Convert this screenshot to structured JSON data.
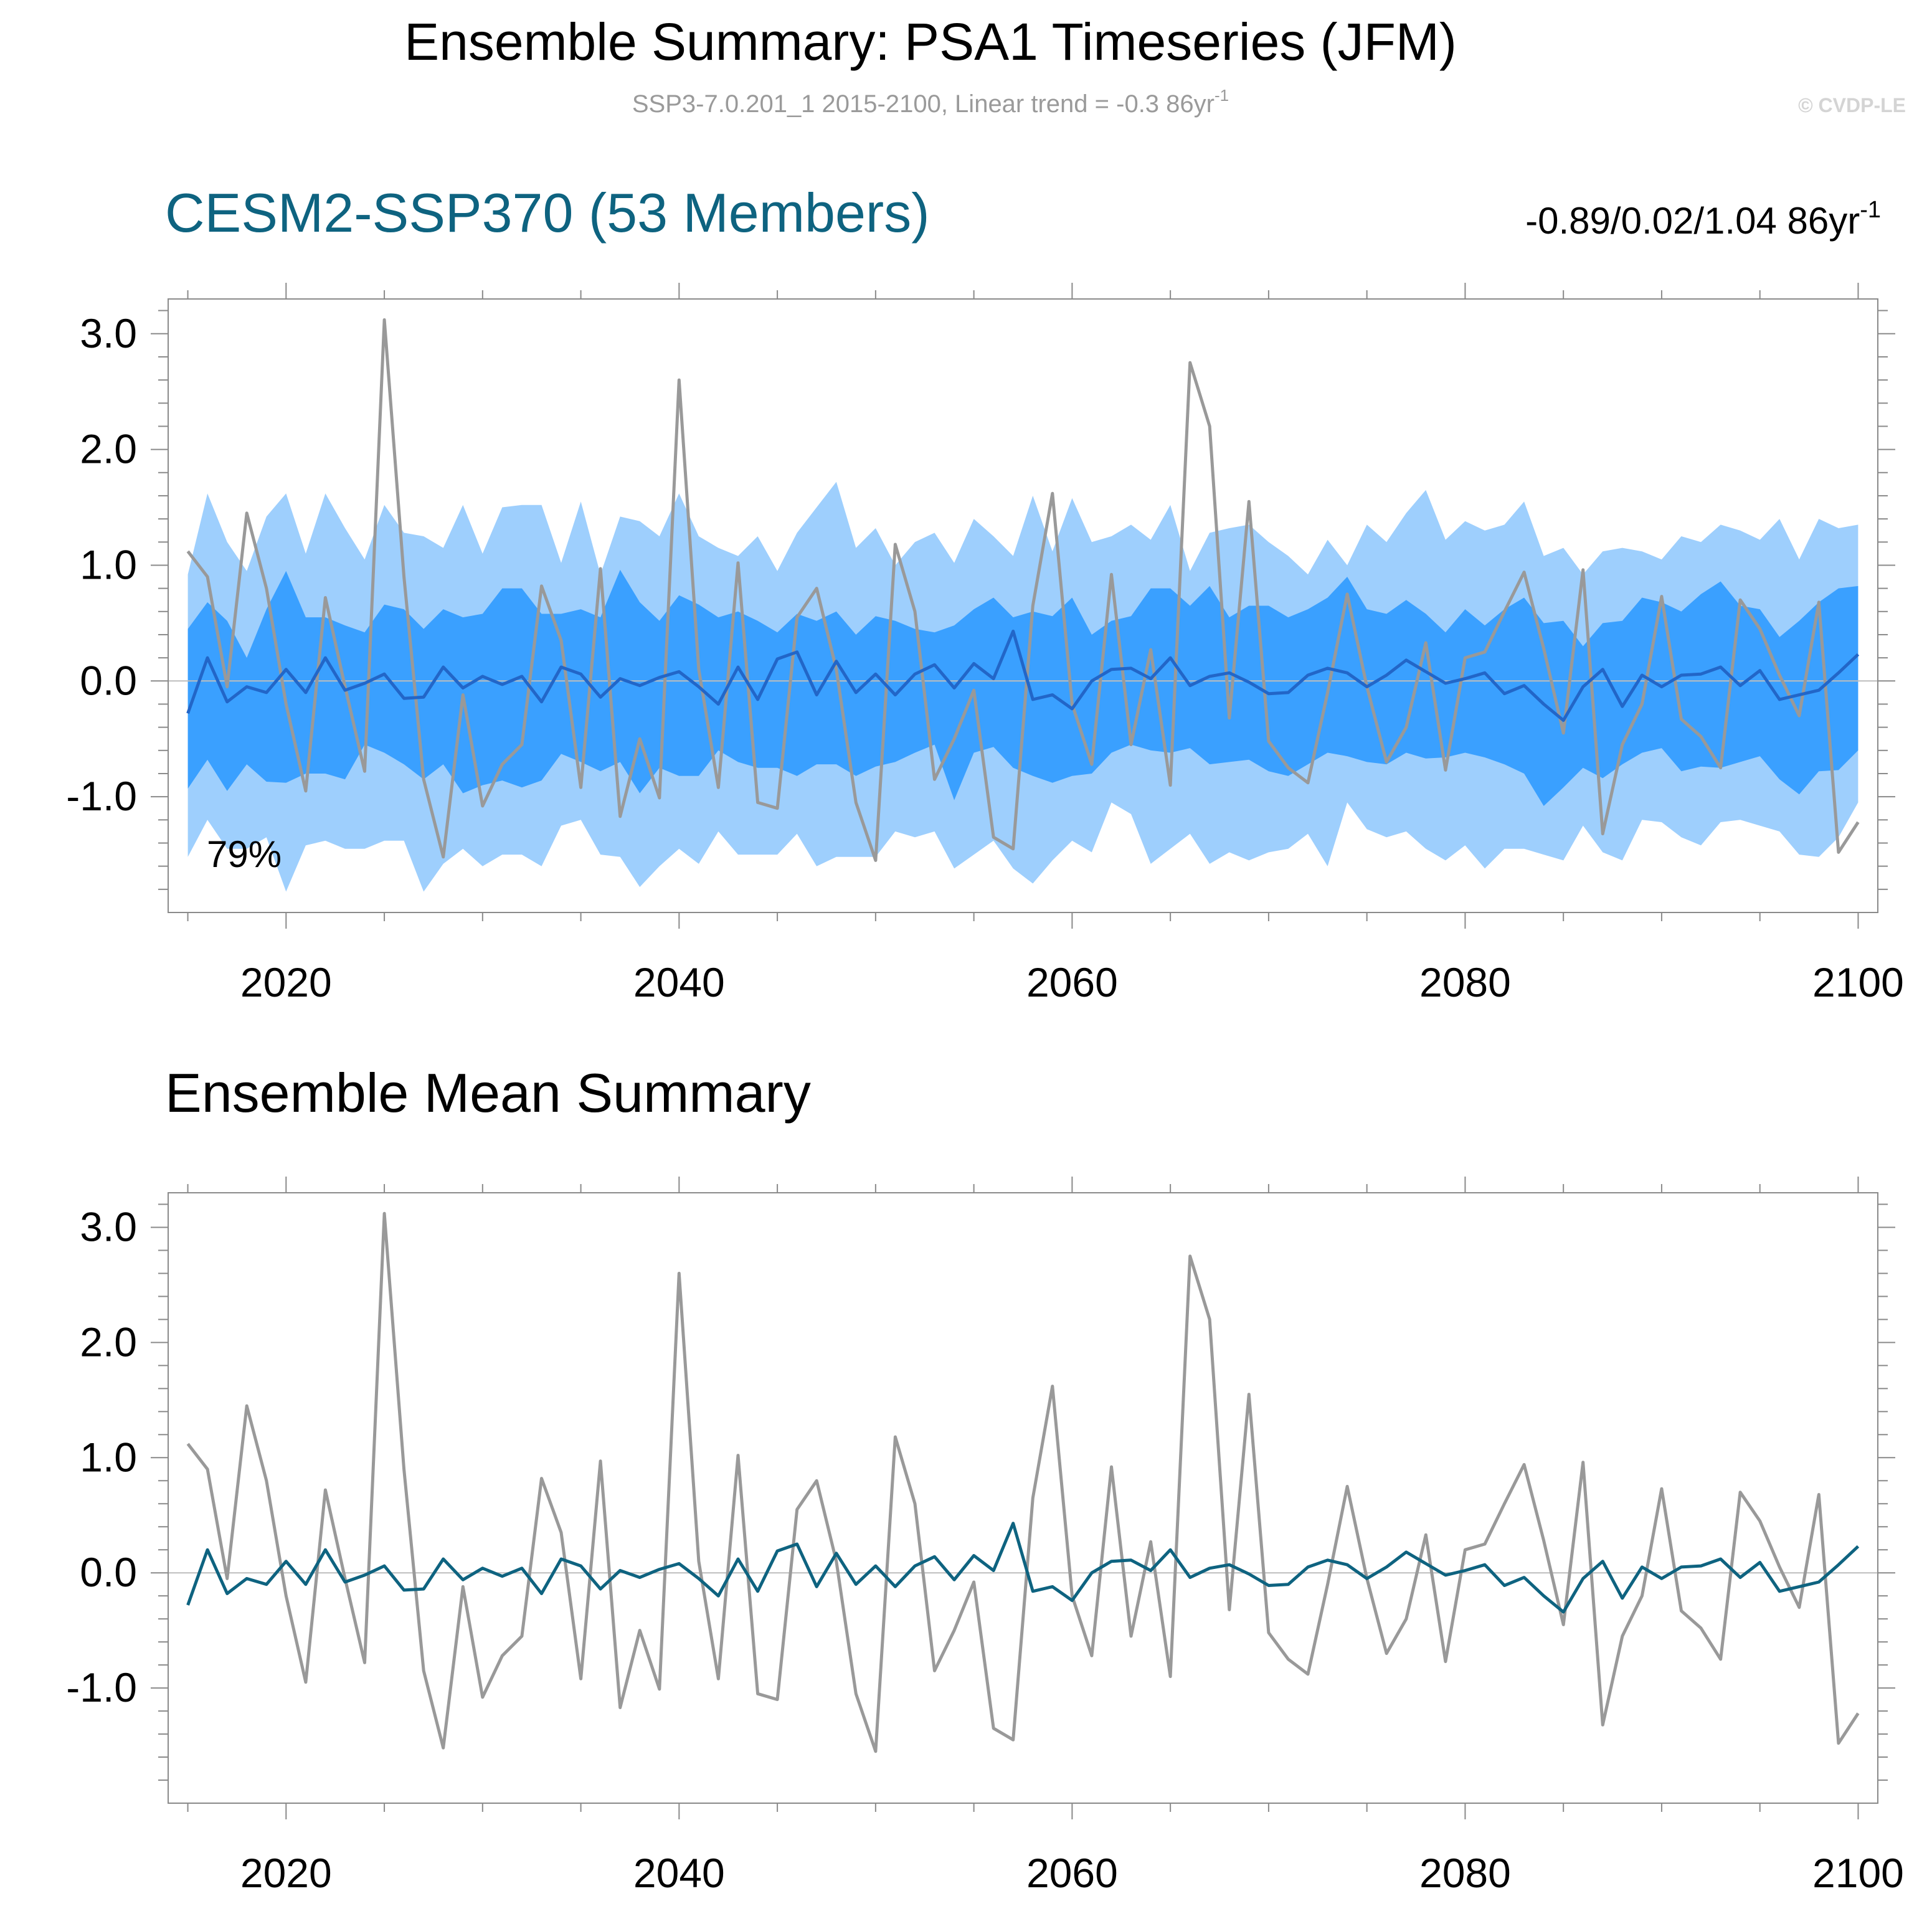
{
  "title": "Ensemble Summary: PSA1 Timeseries (JFM)",
  "subtitle": "SSP3-7.0.201_1 2015-2100, Linear trend = -0.3 86yr",
  "subtitle_exp": "-1",
  "watermark": "© CVDP-LE",
  "colors": {
    "band_outer": "#9ecffd",
    "band_inner": "#3aa0ff",
    "mean_line_top": "#2266c8",
    "obs_line": "#999999",
    "mean_line_bottom": "#0e6380",
    "panel_title": "#0e6380",
    "frame": "#8a8a8a",
    "zero_line": "#bdbdbd"
  },
  "panels": {
    "top": {
      "title": "CESM2-SSP370 (53 Members)",
      "stats": "-0.89/0.02/1.04 86yr",
      "stats_exp": "-1",
      "percent_label": "79%"
    },
    "bottom": {
      "title": "Ensemble Mean Summary"
    }
  },
  "chart_data": {
    "type": "line",
    "x": [
      2015,
      2016,
      2017,
      2018,
      2019,
      2020,
      2021,
      2022,
      2023,
      2024,
      2025,
      2026,
      2027,
      2028,
      2029,
      2030,
      2031,
      2032,
      2033,
      2034,
      2035,
      2036,
      2037,
      2038,
      2039,
      2040,
      2041,
      2042,
      2043,
      2044,
      2045,
      2046,
      2047,
      2048,
      2049,
      2050,
      2051,
      2052,
      2053,
      2054,
      2055,
      2056,
      2057,
      2058,
      2059,
      2060,
      2061,
      2062,
      2063,
      2064,
      2065,
      2066,
      2067,
      2068,
      2069,
      2070,
      2071,
      2072,
      2073,
      2074,
      2075,
      2076,
      2077,
      2078,
      2079,
      2080,
      2081,
      2082,
      2083,
      2084,
      2085,
      2086,
      2087,
      2088,
      2089,
      2090,
      2091,
      2092,
      2093,
      2094,
      2095,
      2096,
      2097,
      2098,
      2099,
      2100
    ],
    "xlim": [
      2014,
      2101
    ],
    "ylim": [
      -2.0,
      3.3
    ],
    "xticks": [
      2020,
      2040,
      2060,
      2080,
      2100
    ],
    "yticks": [
      -1.0,
      0.0,
      1.0,
      2.0,
      3.0
    ],
    "ytick_labels": [
      "-1.0",
      "0.0",
      "1.0",
      "2.0",
      "3.0"
    ],
    "xtick_labels": [
      "2020",
      "2040",
      "2060",
      "2080",
      "2100"
    ],
    "series": [
      {
        "name": "Observations",
        "values": [
          1.12,
          0.9,
          -0.05,
          1.45,
          0.8,
          -0.2,
          -0.95,
          0.72,
          -0.05,
          -0.78,
          3.12,
          0.9,
          -0.85,
          -1.52,
          -0.12,
          -1.08,
          -0.72,
          -0.55,
          0.82,
          0.35,
          -0.92,
          0.97,
          -1.17,
          -0.5,
          -1.01,
          2.6,
          0.1,
          -0.92,
          1.02,
          -1.05,
          -1.1,
          0.55,
          0.8,
          0.1,
          -1.05,
          -1.55,
          1.18,
          0.6,
          -0.85,
          -0.5,
          -0.08,
          -1.35,
          -1.45,
          0.65,
          1.62,
          -0.2,
          -0.72,
          0.92,
          -0.55,
          0.27,
          -0.9,
          2.75,
          2.2,
          -0.32,
          1.55,
          -0.52,
          -0.75,
          -0.88,
          -0.1,
          0.75,
          -0.05,
          -0.7,
          -0.4,
          0.33,
          -0.77,
          0.2,
          0.25,
          0.6,
          0.94,
          0.28,
          -0.45,
          0.96,
          -1.32,
          -0.55,
          -0.2,
          0.73,
          -0.33,
          -0.48,
          -0.75,
          0.7,
          0.45,
          0.05,
          -0.3,
          0.68,
          -1.48,
          -1.22
        ]
      },
      {
        "name": "Ensemble Mean",
        "values": [
          -0.28,
          0.2,
          -0.18,
          -0.05,
          -0.1,
          0.1,
          -0.1,
          0.2,
          -0.08,
          -0.02,
          0.06,
          -0.15,
          -0.14,
          0.12,
          -0.06,
          0.04,
          -0.03,
          0.04,
          -0.18,
          0.12,
          0.06,
          -0.14,
          0.02,
          -0.04,
          0.03,
          0.08,
          -0.05,
          -0.2,
          0.12,
          -0.16,
          0.19,
          0.25,
          -0.12,
          0.17,
          -0.1,
          0.06,
          -0.12,
          0.06,
          0.14,
          -0.06,
          0.15,
          0.02,
          0.43,
          -0.16,
          -0.12,
          -0.24,
          0.0,
          0.1,
          0.11,
          0.02,
          0.2,
          -0.04,
          0.04,
          0.07,
          -0.01,
          -0.11,
          -0.1,
          0.05,
          0.11,
          0.07,
          -0.05,
          0.05,
          0.18,
          0.08,
          -0.02,
          0.02,
          0.07,
          -0.11,
          -0.04,
          -0.2,
          -0.34,
          -0.05,
          0.1,
          -0.22,
          0.05,
          -0.05,
          0.05,
          0.06,
          0.12,
          -0.04,
          0.09,
          -0.16,
          -0.12,
          -0.08,
          0.07,
          0.23
        ]
      },
      {
        "name": "Ensemble 10th percentile",
        "values": [
          -0.93,
          -0.68,
          -0.95,
          -0.72,
          -0.87,
          -0.88,
          -0.8,
          -0.8,
          -0.85,
          -0.55,
          -0.62,
          -0.72,
          -0.85,
          -0.72,
          -0.97,
          -0.9,
          -0.86,
          -0.92,
          -0.86,
          -0.63,
          -0.7,
          -0.78,
          -0.7,
          -0.97,
          -0.75,
          -0.82,
          -0.82,
          -0.6,
          -0.7,
          -0.75,
          -0.75,
          -0.82,
          -0.72,
          -0.72,
          -0.82,
          -0.74,
          -0.7,
          -0.62,
          -0.55,
          -1.03,
          -0.62,
          -0.57,
          -0.75,
          -0.82,
          -0.88,
          -0.82,
          -0.8,
          -0.62,
          -0.55,
          -0.6,
          -0.62,
          -0.58,
          -0.72,
          -0.7,
          -0.68,
          -0.78,
          -0.82,
          -0.72,
          -0.62,
          -0.65,
          -0.7,
          -0.72,
          -0.62,
          -0.67,
          -0.66,
          -0.62,
          -0.66,
          -0.72,
          -0.8,
          -1.08,
          -0.92,
          -0.75,
          -0.84,
          -0.72,
          -0.62,
          -0.58,
          -0.78,
          -0.74,
          -0.75,
          -0.7,
          -0.65,
          -0.85,
          -0.98,
          -0.78,
          -0.77,
          -0.6
        ]
      },
      {
        "name": "Ensemble 90th percentile",
        "values": [
          0.45,
          0.68,
          0.52,
          0.2,
          0.62,
          0.95,
          0.55,
          0.55,
          0.48,
          0.42,
          0.66,
          0.62,
          0.45,
          0.62,
          0.55,
          0.58,
          0.8,
          0.8,
          0.58,
          0.58,
          0.62,
          0.55,
          0.96,
          0.68,
          0.52,
          0.74,
          0.66,
          0.55,
          0.6,
          0.52,
          0.42,
          0.58,
          0.52,
          0.6,
          0.4,
          0.56,
          0.52,
          0.45,
          0.42,
          0.48,
          0.62,
          0.72,
          0.55,
          0.6,
          0.56,
          0.72,
          0.4,
          0.52,
          0.56,
          0.8,
          0.8,
          0.65,
          0.82,
          0.55,
          0.65,
          0.65,
          0.55,
          0.62,
          0.72,
          0.9,
          0.62,
          0.58,
          0.7,
          0.58,
          0.42,
          0.62,
          0.48,
          0.62,
          0.72,
          0.5,
          0.52,
          0.3,
          0.5,
          0.52,
          0.72,
          0.68,
          0.6,
          0.75,
          0.86,
          0.65,
          0.62,
          0.38,
          0.52,
          0.68,
          0.8,
          0.82
        ]
      },
      {
        "name": "Ensemble minimum",
        "values": [
          -1.52,
          -1.2,
          -1.45,
          -1.45,
          -1.35,
          -1.82,
          -1.42,
          -1.38,
          -1.45,
          -1.45,
          -1.38,
          -1.38,
          -1.82,
          -1.58,
          -1.45,
          -1.6,
          -1.5,
          -1.5,
          -1.6,
          -1.25,
          -1.2,
          -1.5,
          -1.52,
          -1.78,
          -1.6,
          -1.45,
          -1.58,
          -1.3,
          -1.5,
          -1.5,
          -1.5,
          -1.32,
          -1.6,
          -1.52,
          -1.52,
          -1.52,
          -1.3,
          -1.35,
          -1.3,
          -1.62,
          -1.5,
          -1.38,
          -1.62,
          -1.75,
          -1.55,
          -1.38,
          -1.48,
          -1.05,
          -1.15,
          -1.58,
          -1.45,
          -1.32,
          -1.58,
          -1.48,
          -1.55,
          -1.48,
          -1.45,
          -1.32,
          -1.6,
          -1.05,
          -1.28,
          -1.35,
          -1.3,
          -1.45,
          -1.55,
          -1.42,
          -1.62,
          -1.45,
          -1.45,
          -1.5,
          -1.55,
          -1.25,
          -1.48,
          -1.55,
          -1.2,
          -1.22,
          -1.35,
          -1.42,
          -1.22,
          -1.2,
          -1.25,
          -1.3,
          -1.5,
          -1.52,
          -1.35,
          -1.05
        ]
      },
      {
        "name": "Ensemble maximum",
        "values": [
          0.92,
          1.62,
          1.2,
          0.95,
          1.42,
          1.62,
          1.1,
          1.62,
          1.32,
          1.05,
          1.52,
          1.28,
          1.25,
          1.15,
          1.52,
          1.1,
          1.5,
          1.52,
          1.52,
          1.02,
          1.55,
          0.92,
          1.42,
          1.38,
          1.25,
          1.62,
          1.25,
          1.15,
          1.08,
          1.25,
          0.95,
          1.28,
          1.5,
          1.72,
          1.15,
          1.32,
          1.0,
          1.2,
          1.28,
          1.02,
          1.4,
          1.25,
          1.08,
          1.6,
          1.12,
          1.58,
          1.2,
          1.25,
          1.35,
          1.22,
          1.52,
          0.95,
          1.28,
          1.32,
          1.35,
          1.2,
          1.08,
          0.92,
          1.22,
          1.0,
          1.35,
          1.2,
          1.45,
          1.65,
          1.22,
          1.38,
          1.3,
          1.35,
          1.55,
          1.08,
          1.15,
          0.92,
          1.12,
          1.15,
          1.12,
          1.05,
          1.25,
          1.2,
          1.35,
          1.3,
          1.22,
          1.4,
          1.05,
          1.4,
          1.32,
          1.35
        ]
      }
    ]
  }
}
